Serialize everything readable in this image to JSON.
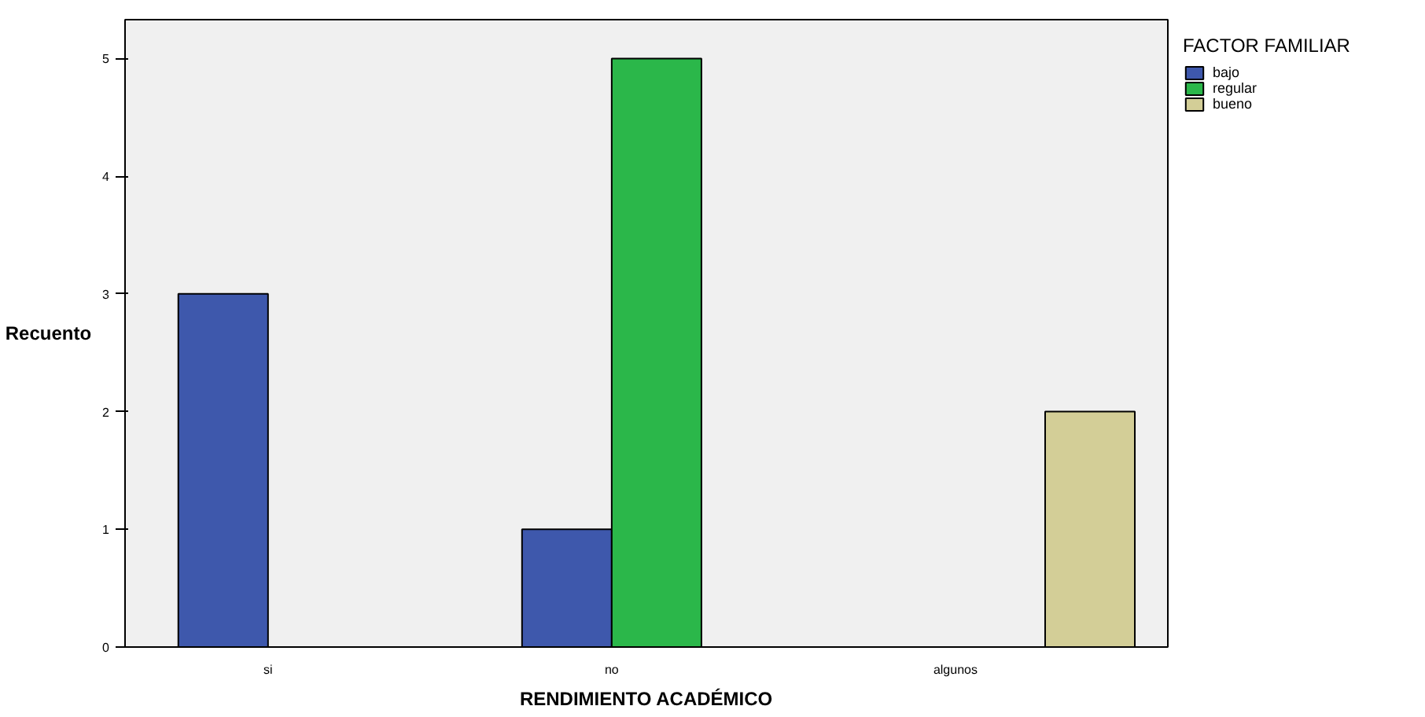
{
  "chart_data": {
    "type": "bar",
    "xlabel": "RENDIMIENTO ACADÉMICO",
    "ylabel": "Recuento",
    "legend_title": "FACTOR FAMILIAR",
    "categories": [
      "si",
      "no",
      "algunos"
    ],
    "series": [
      {
        "name": "bajo",
        "color": "#3e58ac",
        "values": [
          3,
          1,
          null
        ]
      },
      {
        "name": "regular",
        "color": "#2bb74a",
        "values": [
          null,
          5,
          null
        ]
      },
      {
        "name": "bueno",
        "color": "#d3ce97",
        "values": [
          null,
          null,
          2
        ]
      }
    ],
    "ylim": [
      0,
      5.33
    ],
    "yticks": [
      0,
      1,
      2,
      3,
      4,
      5
    ],
    "grid": false,
    "legend": "top right"
  }
}
